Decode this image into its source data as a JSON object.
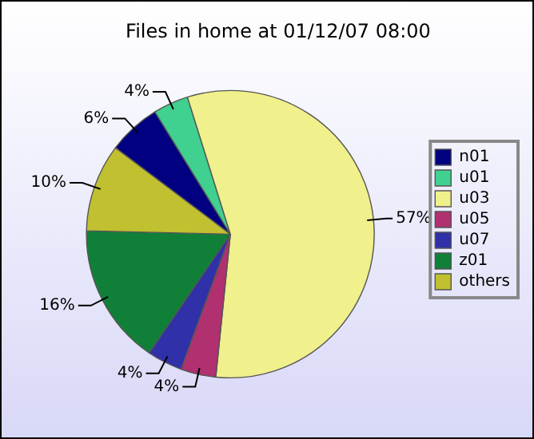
{
  "chart_data": {
    "type": "pie",
    "title": "Files in home at 01/12/07 08:00",
    "categories": [
      "n01",
      "u01",
      "u03",
      "u05",
      "u07",
      "z01",
      "others"
    ],
    "values": [
      6,
      4,
      57,
      4,
      4,
      16,
      10
    ],
    "value_labels": [
      "6%",
      "4%",
      "57%",
      "4%",
      "4%",
      "16%",
      "10%"
    ],
    "colors": [
      "#000080",
      "#40d090",
      "#f0f08c",
      "#b03070",
      "#3030a8",
      "#108038",
      "#c0c030"
    ],
    "legend": "right"
  }
}
